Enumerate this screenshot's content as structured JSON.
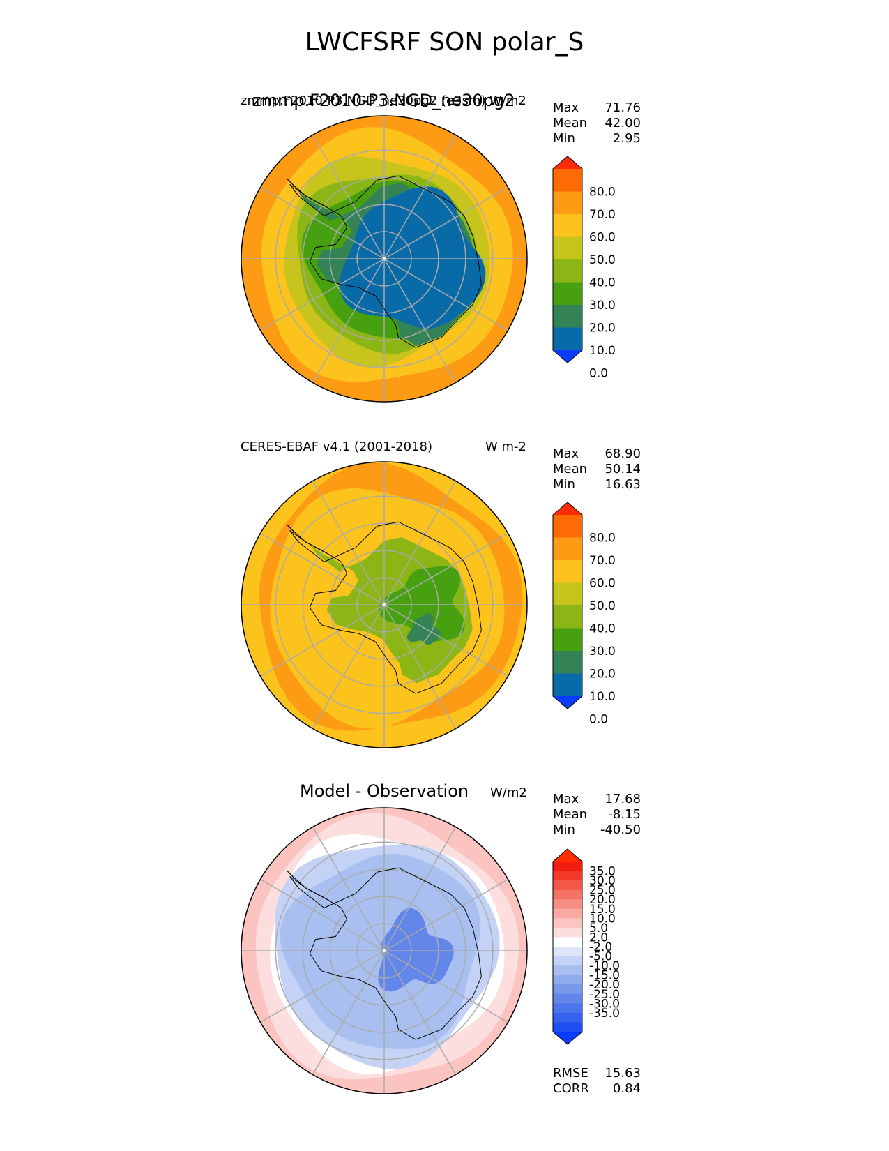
{
  "title": "LWCFSRF SON polar_S",
  "palettes": {
    "main": [
      "#0a3cff",
      "#086aa6",
      "#348357",
      "#46a010",
      "#8cb616",
      "#c8c41e",
      "#fcc31c",
      "#fe9b14",
      "#fe6a04",
      "#fe2c04"
    ],
    "diff": [
      "#0a3cff",
      "#1f4ef3",
      "#3762ef",
      "#4c74ec",
      "#6286ea",
      "#7898ea",
      "#90acec",
      "#a8bff0",
      "#c3d2f5",
      "#dde5f9",
      "#ffffff",
      "#fcdede",
      "#fbc4c0",
      "#f9a9a1",
      "#f78e82",
      "#f57364",
      "#f45647",
      "#f3392a",
      "#f21d10",
      "#fe2c04"
    ]
  },
  "panels": [
    {
      "id": "test",
      "left_title": "",
      "center_title": "zmmp.F2010-P3.NGD_ne30pg2",
      "overlay_title": "zmmp.F2010-P3.NGD_ne30pg2 (e3sm)",
      "units": "W/m2",
      "stats": [
        {
          "label": "Max",
          "value": "71.76"
        },
        {
          "label": "Mean",
          "value": "42.00"
        },
        {
          "label": "Min",
          "value": "2.95"
        }
      ],
      "colorbar_labels": [
        "80.0",
        "70.0",
        "60.0",
        "50.0",
        "40.0",
        "30.0",
        "20.0",
        "10.0",
        "0.0"
      ],
      "palette": "main"
    },
    {
      "id": "ref",
      "left_title": "CERES-EBAF v4.1 (2001-2018)",
      "center_title": "",
      "units": "W m-2",
      "stats": [
        {
          "label": "Max",
          "value": "68.90"
        },
        {
          "label": "Mean",
          "value": "50.14"
        },
        {
          "label": "Min",
          "value": "16.63"
        }
      ],
      "colorbar_labels": [
        "80.0",
        "70.0",
        "60.0",
        "50.0",
        "40.0",
        "30.0",
        "20.0",
        "10.0",
        "0.0"
      ],
      "palette": "main"
    },
    {
      "id": "diff",
      "left_title": "",
      "center_title": "Model - Observation",
      "units": "W/m2",
      "stats": [
        {
          "label": "Max",
          "value": "17.68"
        },
        {
          "label": "Mean",
          "value": "-8.15"
        },
        {
          "label": "Min",
          "value": "-40.50"
        }
      ],
      "colorbar_labels": [
        "35.0",
        "30.0",
        "25.0",
        "20.0",
        "15.0",
        "10.0",
        "5.0",
        "2.0",
        "-2.0",
        "-5.0",
        "-10.0",
        "-15.0",
        "-20.0",
        "-25.0",
        "-30.0",
        "-35.0"
      ],
      "palette": "diff",
      "bottom_stats": [
        {
          "label": "RMSE",
          "value": "15.63"
        },
        {
          "label": "CORR",
          "value": "0.84"
        }
      ]
    }
  ],
  "chart_data": [
    {
      "type": "heatmap",
      "projection": "south polar stereographic",
      "title": "zmmp.F2010-P3.NGD_ne30pg2",
      "units": "W/m2",
      "stats": {
        "max": 71.76,
        "mean": 42.0,
        "min": 2.95
      },
      "colorbar_levels": [
        0,
        10,
        20,
        30,
        40,
        50,
        60,
        70,
        80
      ],
      "colorbar_extend": "both"
    },
    {
      "type": "heatmap",
      "projection": "south polar stereographic",
      "title": "CERES-EBAF v4.1 (2001-2018)",
      "units": "W m-2",
      "stats": {
        "max": 68.9,
        "mean": 50.14,
        "min": 16.63
      },
      "colorbar_levels": [
        0,
        10,
        20,
        30,
        40,
        50,
        60,
        70,
        80
      ],
      "colorbar_extend": "both"
    },
    {
      "type": "heatmap",
      "projection": "south polar stereographic",
      "title": "Model - Observation",
      "units": "W/m2",
      "stats": {
        "max": 17.68,
        "mean": -8.15,
        "min": -40.5,
        "rmse": 15.63,
        "corr": 0.84
      },
      "colorbar_levels": [
        -35,
        -30,
        -25,
        -20,
        -15,
        -10,
        -5,
        -2,
        2,
        5,
        10,
        15,
        20,
        25,
        30,
        35
      ],
      "colorbar_extend": "both"
    }
  ]
}
